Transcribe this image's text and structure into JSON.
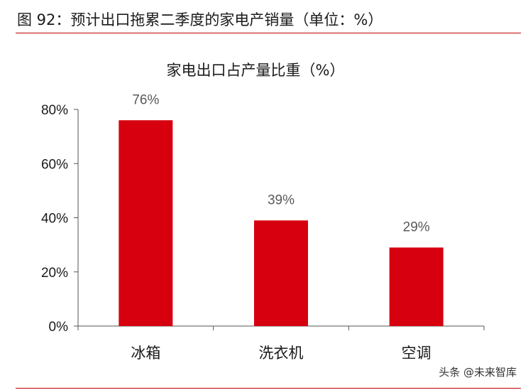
{
  "figure": {
    "title": "图 92：预计出口拖累二季度的家电产销量（单位：%）",
    "watermark": "头条 @未来智库"
  },
  "colors": {
    "bar": "#d7000f",
    "rule": "#c00000",
    "axis": "#555555",
    "label": "#595959"
  },
  "chart_data": {
    "type": "bar",
    "title": "家电出口占产量比重（%）",
    "categories": [
      "冰箱",
      "洗衣机",
      "空调"
    ],
    "values": [
      76,
      39,
      29
    ],
    "data_labels": [
      "76%",
      "39%",
      "29%"
    ],
    "yticks": [
      "0%",
      "20%",
      "40%",
      "60%",
      "80%"
    ],
    "ylim": [
      0,
      80
    ],
    "xlabel": "",
    "ylabel": "",
    "grid": false,
    "legend": "none"
  }
}
